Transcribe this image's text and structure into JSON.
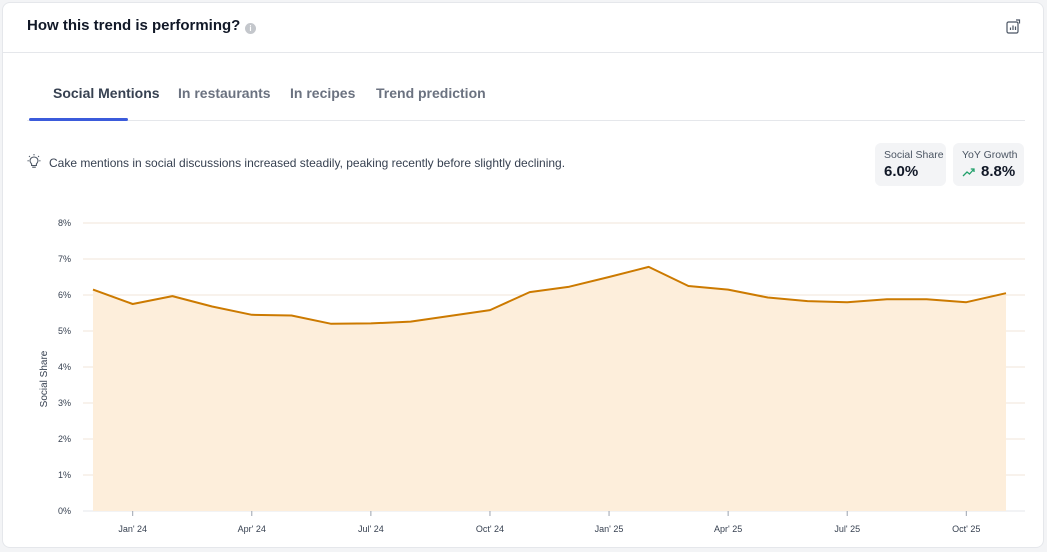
{
  "header": {
    "title": "How this trend is performing?",
    "info_glyph": "i",
    "export_icon": "export-chart-icon"
  },
  "tabs": [
    {
      "label": "Social Mentions",
      "active": true
    },
    {
      "label": "In restaurants",
      "active": false
    },
    {
      "label": "In recipes",
      "active": false
    },
    {
      "label": "Trend prediction",
      "active": false
    }
  ],
  "insight": {
    "icon": "lightbulb-icon",
    "text": "Cake mentions in social discussions increased steadily, peaking recently before slightly declining."
  },
  "metrics": {
    "social_share": {
      "label": "Social Share",
      "value": "6.0%"
    },
    "yoy_growth": {
      "label": "YoY Growth",
      "value": "8.8%",
      "trend_icon": "trend-up-icon",
      "trend_color": "#22a06b"
    }
  },
  "colors": {
    "line": "#cc7a00",
    "area": "#fdeedb",
    "grid": "#f0e6d8",
    "tab_active": "#3b5bdb"
  },
  "chart_data": {
    "type": "area",
    "ylabel": "Social Share",
    "xlabel": "",
    "ylim": [
      0,
      8
    ],
    "y_ticks": [
      "0%",
      "1%",
      "2%",
      "3%",
      "4%",
      "5%",
      "6%",
      "7%",
      "8%"
    ],
    "x_tick_labels": [
      "Jan' 24",
      "Apr' 24",
      "Jul' 24",
      "Oct' 24",
      "Jan' 25",
      "Apr' 25",
      "Jul' 25",
      "Oct' 25"
    ],
    "x": [
      "Dec' 23",
      "Jan' 24",
      "Feb' 24",
      "Mar' 24",
      "Apr' 24",
      "May' 24",
      "Jun' 24",
      "Jul' 24",
      "Aug' 24",
      "Sep' 24",
      "Oct' 24",
      "Nov' 24",
      "Dec' 24",
      "Jan' 25",
      "Feb' 25",
      "Mar' 25",
      "Apr' 25",
      "May' 25",
      "Jun' 25",
      "Jul' 25",
      "Aug' 25",
      "Sep' 25",
      "Oct' 25",
      "Nov' 25"
    ],
    "series": [
      {
        "values": [
          6.15,
          5.75,
          5.97,
          5.68,
          5.45,
          5.43,
          5.2,
          5.21,
          5.26,
          5.42,
          5.58,
          6.08,
          6.23,
          6.5,
          6.78,
          6.25,
          6.15,
          5.93,
          5.83,
          5.8,
          5.88,
          5.88,
          5.8,
          6.05
        ]
      }
    ],
    "grid": true,
    "legend": "none"
  }
}
